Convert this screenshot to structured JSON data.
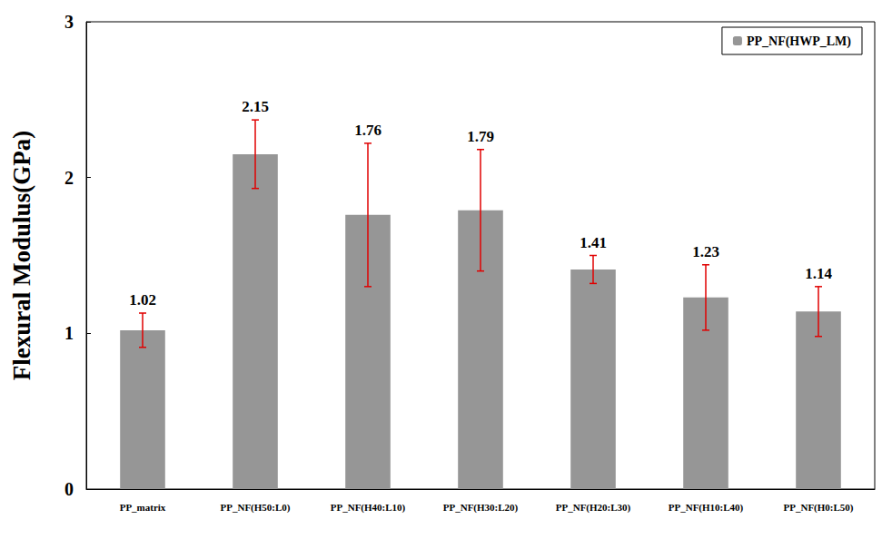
{
  "chart_data": {
    "type": "bar",
    "y_label": "Flexural Modulus(GPa)",
    "categories": [
      "PP_matrix",
      "PP_NF(H50:L0)",
      "PP_NF(H40:L10)",
      "PP_NF(H30:L20)",
      "PP_NF(H20:L30)",
      "PP_NF(H10:L40)",
      "PP_NF(H0:L50)"
    ],
    "series": [
      {
        "name": "PP_NF(HWP_LM)",
        "color": "#969696",
        "values": [
          1.02,
          2.15,
          1.76,
          1.79,
          1.41,
          1.23,
          1.14
        ],
        "errors": [
          0.11,
          0.22,
          0.46,
          0.39,
          0.09,
          0.21,
          0.16
        ]
      }
    ],
    "ylim": [
      0,
      3
    ],
    "yticks": [
      0,
      1,
      2,
      3
    ],
    "grid": false,
    "legend": "upper right",
    "data_labels": true
  }
}
